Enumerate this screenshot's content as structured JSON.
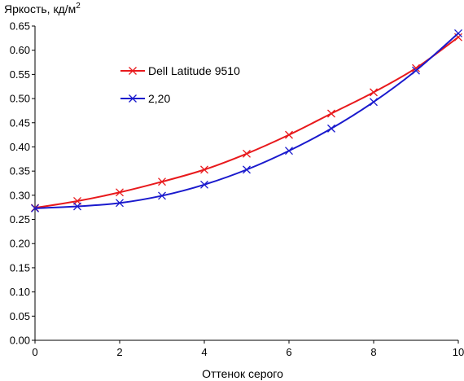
{
  "chart_data": {
    "type": "line",
    "ylabel": "Яркость, кд/м",
    "ylabel_superscript": "2",
    "xlabel": "Оттенок серого",
    "xlim": [
      0,
      10
    ],
    "ylim": [
      0,
      0.65
    ],
    "x_ticks": [
      "0",
      "2",
      "4",
      "6",
      "8",
      "10"
    ],
    "y_ticks": [
      "0.00",
      "0.05",
      "0.10",
      "0.15",
      "0.20",
      "0.25",
      "0.30",
      "0.35",
      "0.40",
      "0.45",
      "0.50",
      "0.55",
      "0.60",
      "0.65"
    ],
    "grid": false,
    "legend_position": "top-left",
    "series": [
      {
        "name": "Dell Latitude 9510",
        "color": "#e8191c",
        "marker": "x",
        "x": [
          0,
          1,
          2,
          3,
          4,
          5,
          6,
          7,
          8,
          9,
          10
        ],
        "y": [
          0.274,
          0.288,
          0.306,
          0.328,
          0.353,
          0.386,
          0.425,
          0.469,
          0.513,
          0.563,
          0.627
        ]
      },
      {
        "name": "2,20",
        "color": "#1a1acd",
        "marker": "x",
        "x": [
          0,
          1,
          2,
          3,
          4,
          5,
          6,
          7,
          8,
          9,
          10
        ],
        "y": [
          0.273,
          0.277,
          0.284,
          0.299,
          0.322,
          0.353,
          0.392,
          0.438,
          0.493,
          0.558,
          0.635
        ]
      }
    ]
  }
}
